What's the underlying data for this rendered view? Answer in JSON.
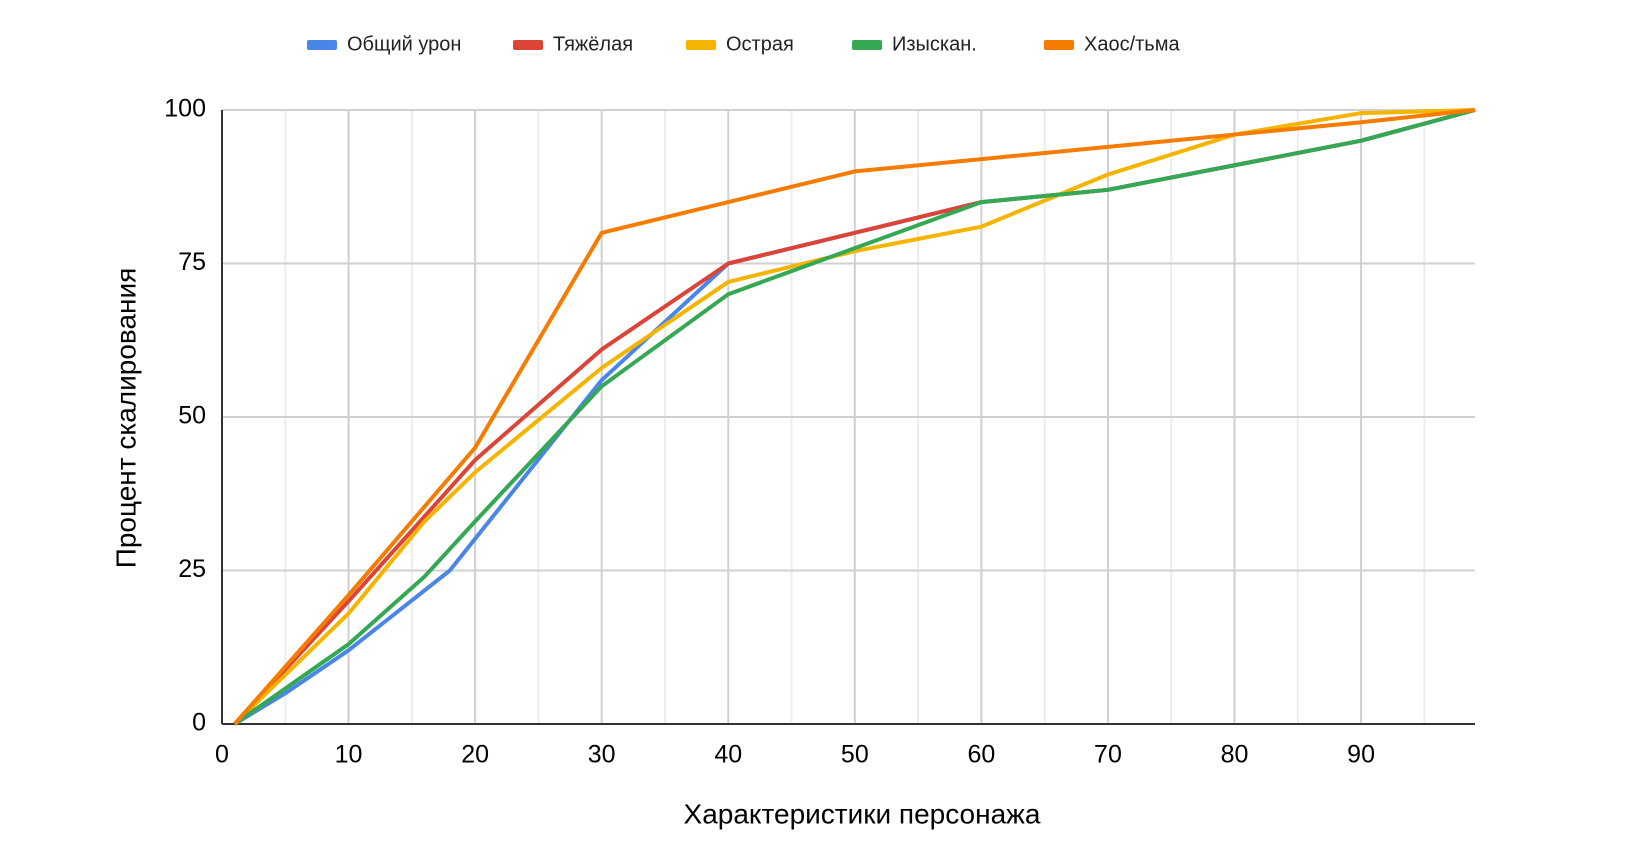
{
  "chart_data": {
    "type": "line",
    "x_label": "Характеристики персонажа",
    "y_label": "Процент скалирования",
    "xlim": [
      0,
      99
    ],
    "xticks": [
      0,
      10,
      20,
      30,
      40,
      50,
      60,
      70,
      80,
      90
    ],
    "ylim": [
      0,
      100
    ],
    "yticks": [
      0,
      25,
      50,
      75,
      100
    ],
    "grid": true,
    "legend": "top",
    "series": [
      {
        "name": "Общий урон",
        "color": "#4a86e8",
        "x": [
          1,
          5,
          10,
          18,
          30,
          40,
          50,
          60,
          70,
          80,
          90,
          99
        ],
        "values": [
          0,
          5,
          12,
          25,
          56,
          75,
          80,
          85,
          87,
          91,
          95,
          100
        ]
      },
      {
        "name": "Тяжёлая",
        "color": "#db4437",
        "x": [
          1,
          10,
          20,
          30,
          40,
          50,
          60,
          70,
          80,
          90,
          99
        ],
        "values": [
          0,
          20,
          43,
          61,
          75,
          80,
          85,
          87,
          91,
          95,
          100
        ]
      },
      {
        "name": "Острая",
        "color": "#f4b400",
        "x": [
          1,
          10,
          16,
          20,
          30,
          40,
          50,
          60,
          70,
          80,
          90,
          99
        ],
        "values": [
          0,
          18,
          33,
          41,
          58,
          72,
          77,
          81,
          89.5,
          96,
          99.5,
          100
        ]
      },
      {
        "name": "Изыскан.",
        "color": "#34a853",
        "x": [
          1,
          10,
          16,
          20,
          30,
          40,
          50,
          60,
          70,
          80,
          90,
          99
        ],
        "values": [
          0,
          13,
          24,
          33,
          55,
          70,
          77.5,
          85,
          87,
          91,
          95,
          100
        ]
      },
      {
        "name": "Хаос/тьма",
        "color": "#f57c00",
        "x": [
          1,
          10,
          20,
          30,
          40,
          50,
          60,
          70,
          80,
          90,
          99
        ],
        "values": [
          0,
          21,
          45,
          80,
          85,
          90,
          92,
          94,
          96,
          98,
          100
        ]
      }
    ]
  }
}
